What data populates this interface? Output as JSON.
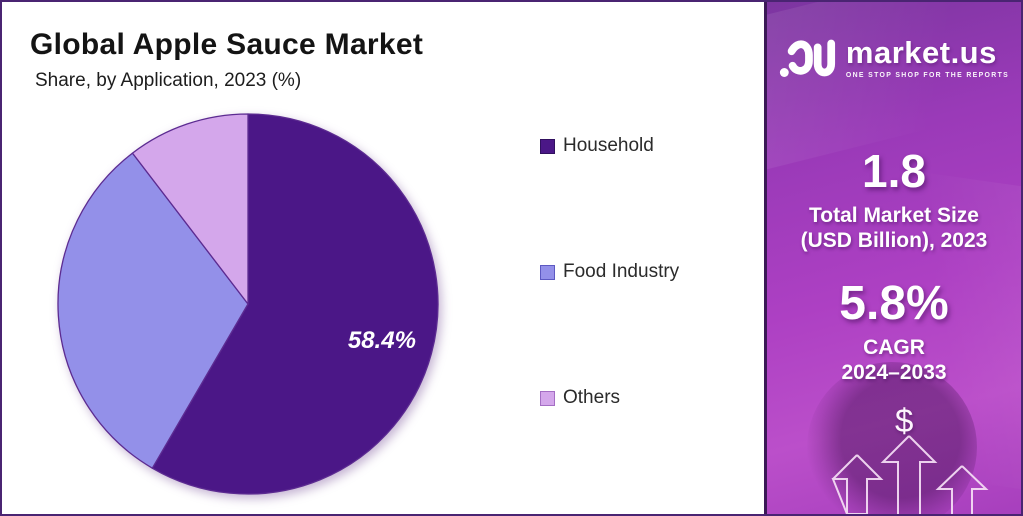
{
  "page": {
    "title": "Global Apple Sauce Market",
    "subtitle": "Share, by Application, 2023 (%)"
  },
  "chart_data": {
    "type": "pie",
    "title": "Global Apple Sauce Market",
    "subtitle": "Share, by Application, 2023 (%)",
    "categories": [
      "Household",
      "Food Industry",
      "Others"
    ],
    "values": [
      58.4,
      31.2,
      10.4
    ],
    "data_labels": [
      "58.4%",
      "",
      ""
    ],
    "colors": [
      "#4b1787",
      "#9390e9",
      "#d4a7eb"
    ],
    "swatch_border_colors": [
      "#31105f",
      "#5d59c2",
      "#a46ec4"
    ],
    "slice_border_color": "#5c2b91",
    "start_angle_deg": 0,
    "direction": "clockwise",
    "legend_position": "right"
  },
  "side_panel": {
    "brand_name": "market.us",
    "brand_tagline": "ONE STOP SHOP FOR THE REPORTS",
    "market_size_value": "1.8",
    "market_size_label_line1": "Total Market Size",
    "market_size_label_line2": "(USD Billion), 2023",
    "cagr_value": "5.8%",
    "cagr_label_line1": "CAGR",
    "cagr_label_line2": "2024–2033",
    "currency_symbol": "$",
    "panel_accent_color": "#b04ac6"
  }
}
